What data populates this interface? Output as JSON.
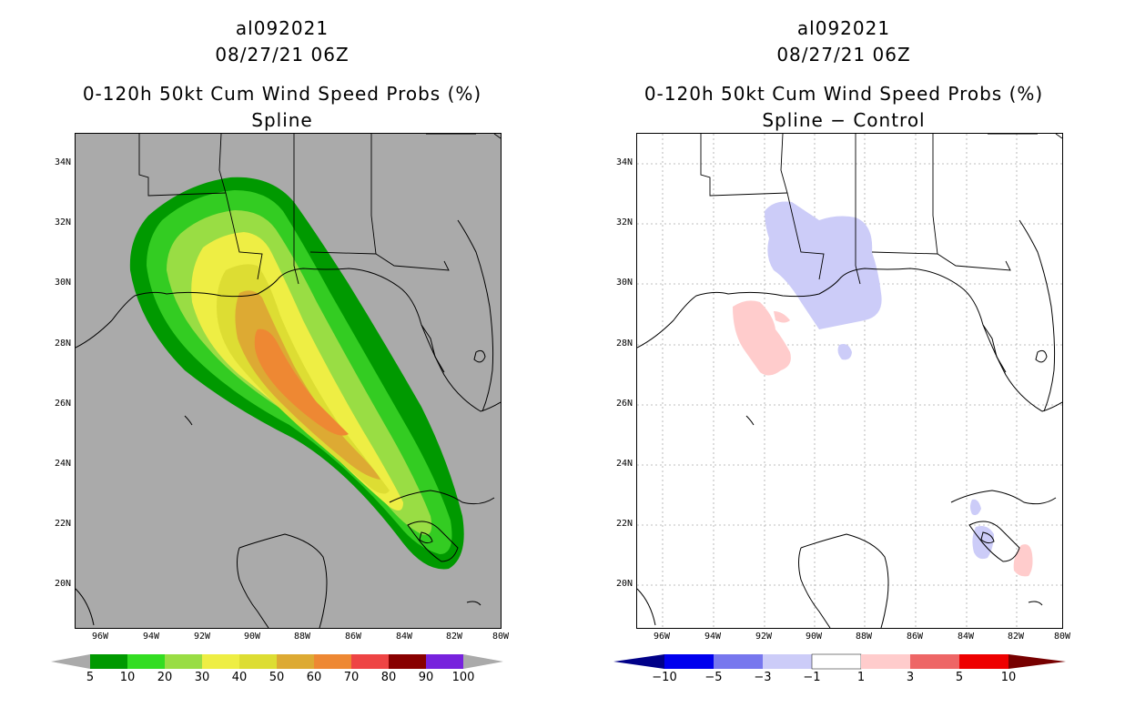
{
  "left_panel": {
    "storm_id": "al092021",
    "datetime": "08/27/21 06Z",
    "product": "0-120h 50kt Cum Wind Speed Probs (%)",
    "subtitle": "Spline",
    "colorbar_labels": [
      "5",
      "10",
      "20",
      "30",
      "40",
      "50",
      "60",
      "70",
      "80",
      "90",
      "100"
    ],
    "colorbar_colors": [
      "#009900",
      "#33dd22",
      "#99dd44",
      "#eeee44",
      "#dddd33",
      "#ddaa33",
      "#ee8833",
      "#ee4444",
      "#880000",
      "#7722dd"
    ]
  },
  "right_panel": {
    "storm_id": "al092021",
    "datetime": "08/27/21 06Z",
    "product": "0-120h 50kt Cum Wind Speed Probs (%)",
    "subtitle": "Spline − Control",
    "colorbar_labels": [
      "−10",
      "−5",
      "−3",
      "−1",
      "1",
      "3",
      "5",
      "10"
    ],
    "colorbar_colors": [
      "#000088",
      "#0000ee",
      "#7777ee",
      "#ccccf8",
      "#ffffff",
      "#ffcccc",
      "#ee6666",
      "#ee0000",
      "#770000"
    ]
  },
  "latitude_labels": [
    "34N",
    "32N",
    "30N",
    "28N",
    "26N",
    "24N",
    "22N",
    "20N"
  ],
  "longitude_labels": [
    "96W",
    "94W",
    "92W",
    "90W",
    "88W",
    "86W",
    "84W",
    "82W",
    "80W"
  ],
  "colors": {
    "land_background": "#aaaaaa",
    "contour_5": "#009900",
    "contour_10": "#33cc22",
    "contour_20": "#99dd44",
    "contour_30": "#eeee44",
    "contour_40": "#dddd33",
    "contour_50": "#ddaa33",
    "contour_60": "#ee8833",
    "diff_negative": "#ccccf8",
    "diff_positive": "#ffcccc"
  }
}
